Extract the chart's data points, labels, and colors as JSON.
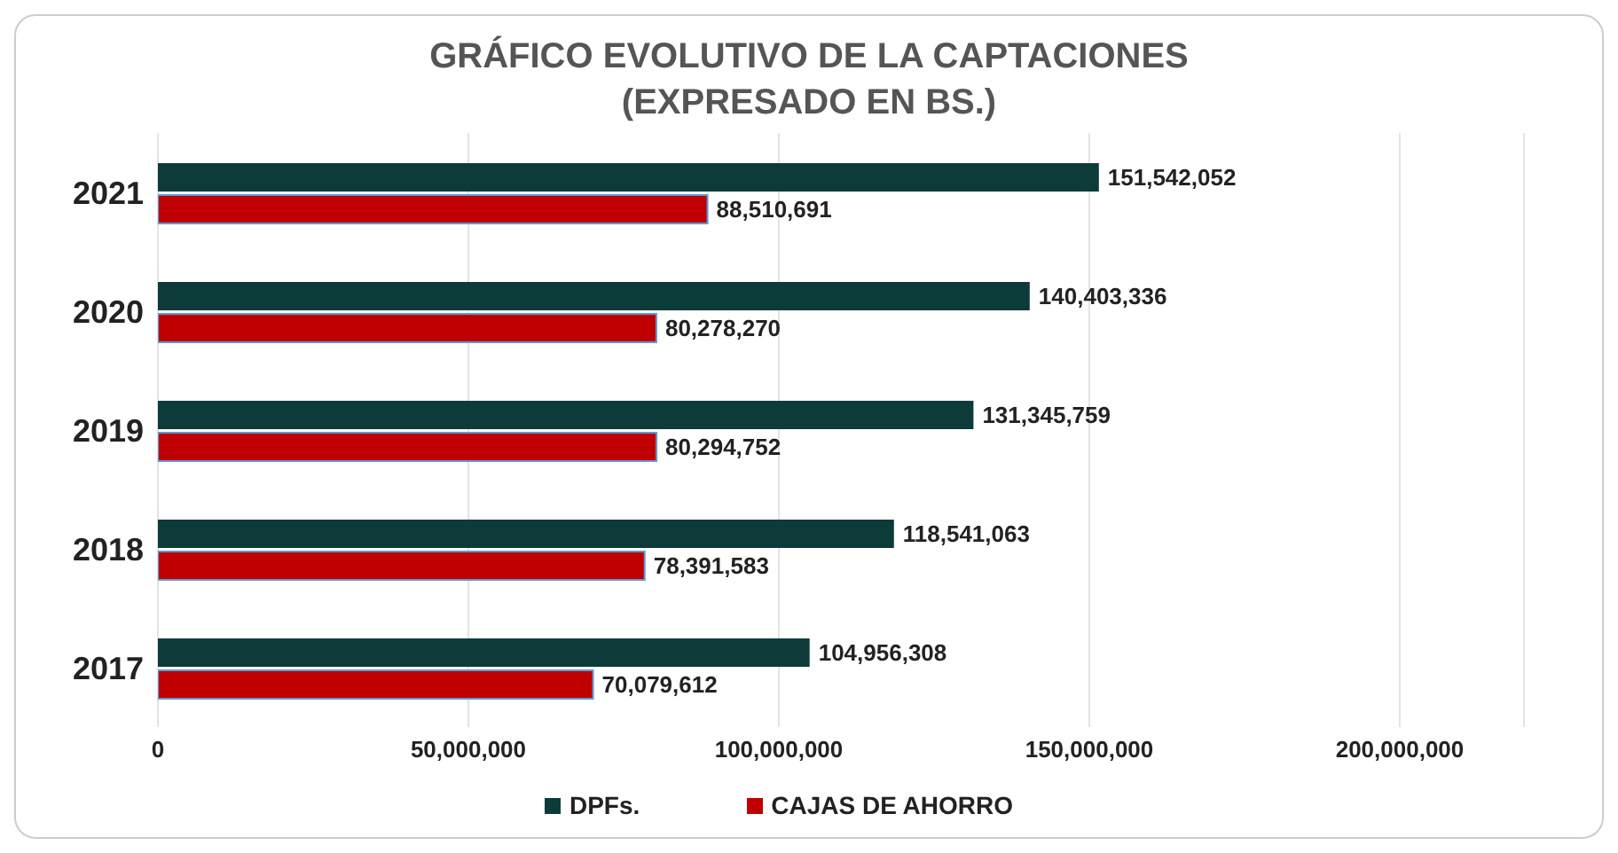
{
  "chart_data": {
    "type": "bar",
    "orientation": "horizontal",
    "title": "GRÁFICO EVOLUTIVO DE LA CAPTACIONES",
    "subtitle": "(EXPRESADO EN BS.)",
    "categories": [
      "2021",
      "2020",
      "2019",
      "2018",
      "2017"
    ],
    "series": [
      {
        "name": "DPFs.",
        "color": "#0d3b3a",
        "values": [
          151542052,
          140403336,
          131345759,
          118541063,
          104956308
        ],
        "value_labels": [
          "151,542,052",
          "140,403,336",
          "131,345,759",
          "118,541,063",
          "104,956,308"
        ]
      },
      {
        "name": "CAJAS DE AHORRO",
        "color": "#c00000",
        "values": [
          88510691,
          80278270,
          80294752,
          78391583,
          70079612
        ],
        "value_labels": [
          "88,510,691",
          "80,278,270",
          "80,294,752",
          "78,391,583",
          "70,079,612"
        ]
      }
    ],
    "xlim": [
      0,
      220000000
    ],
    "xticks": [
      0,
      {
        "value": 50000000,
        "label": "50,000,000"
      },
      {
        "value": 100000000,
        "label": "100,000,000"
      },
      {
        "value": 150000000,
        "label": "150,000,000"
      },
      {
        "value": 200000000,
        "label": "200,000,000"
      }
    ],
    "grid": "x",
    "legend": "bottom"
  }
}
